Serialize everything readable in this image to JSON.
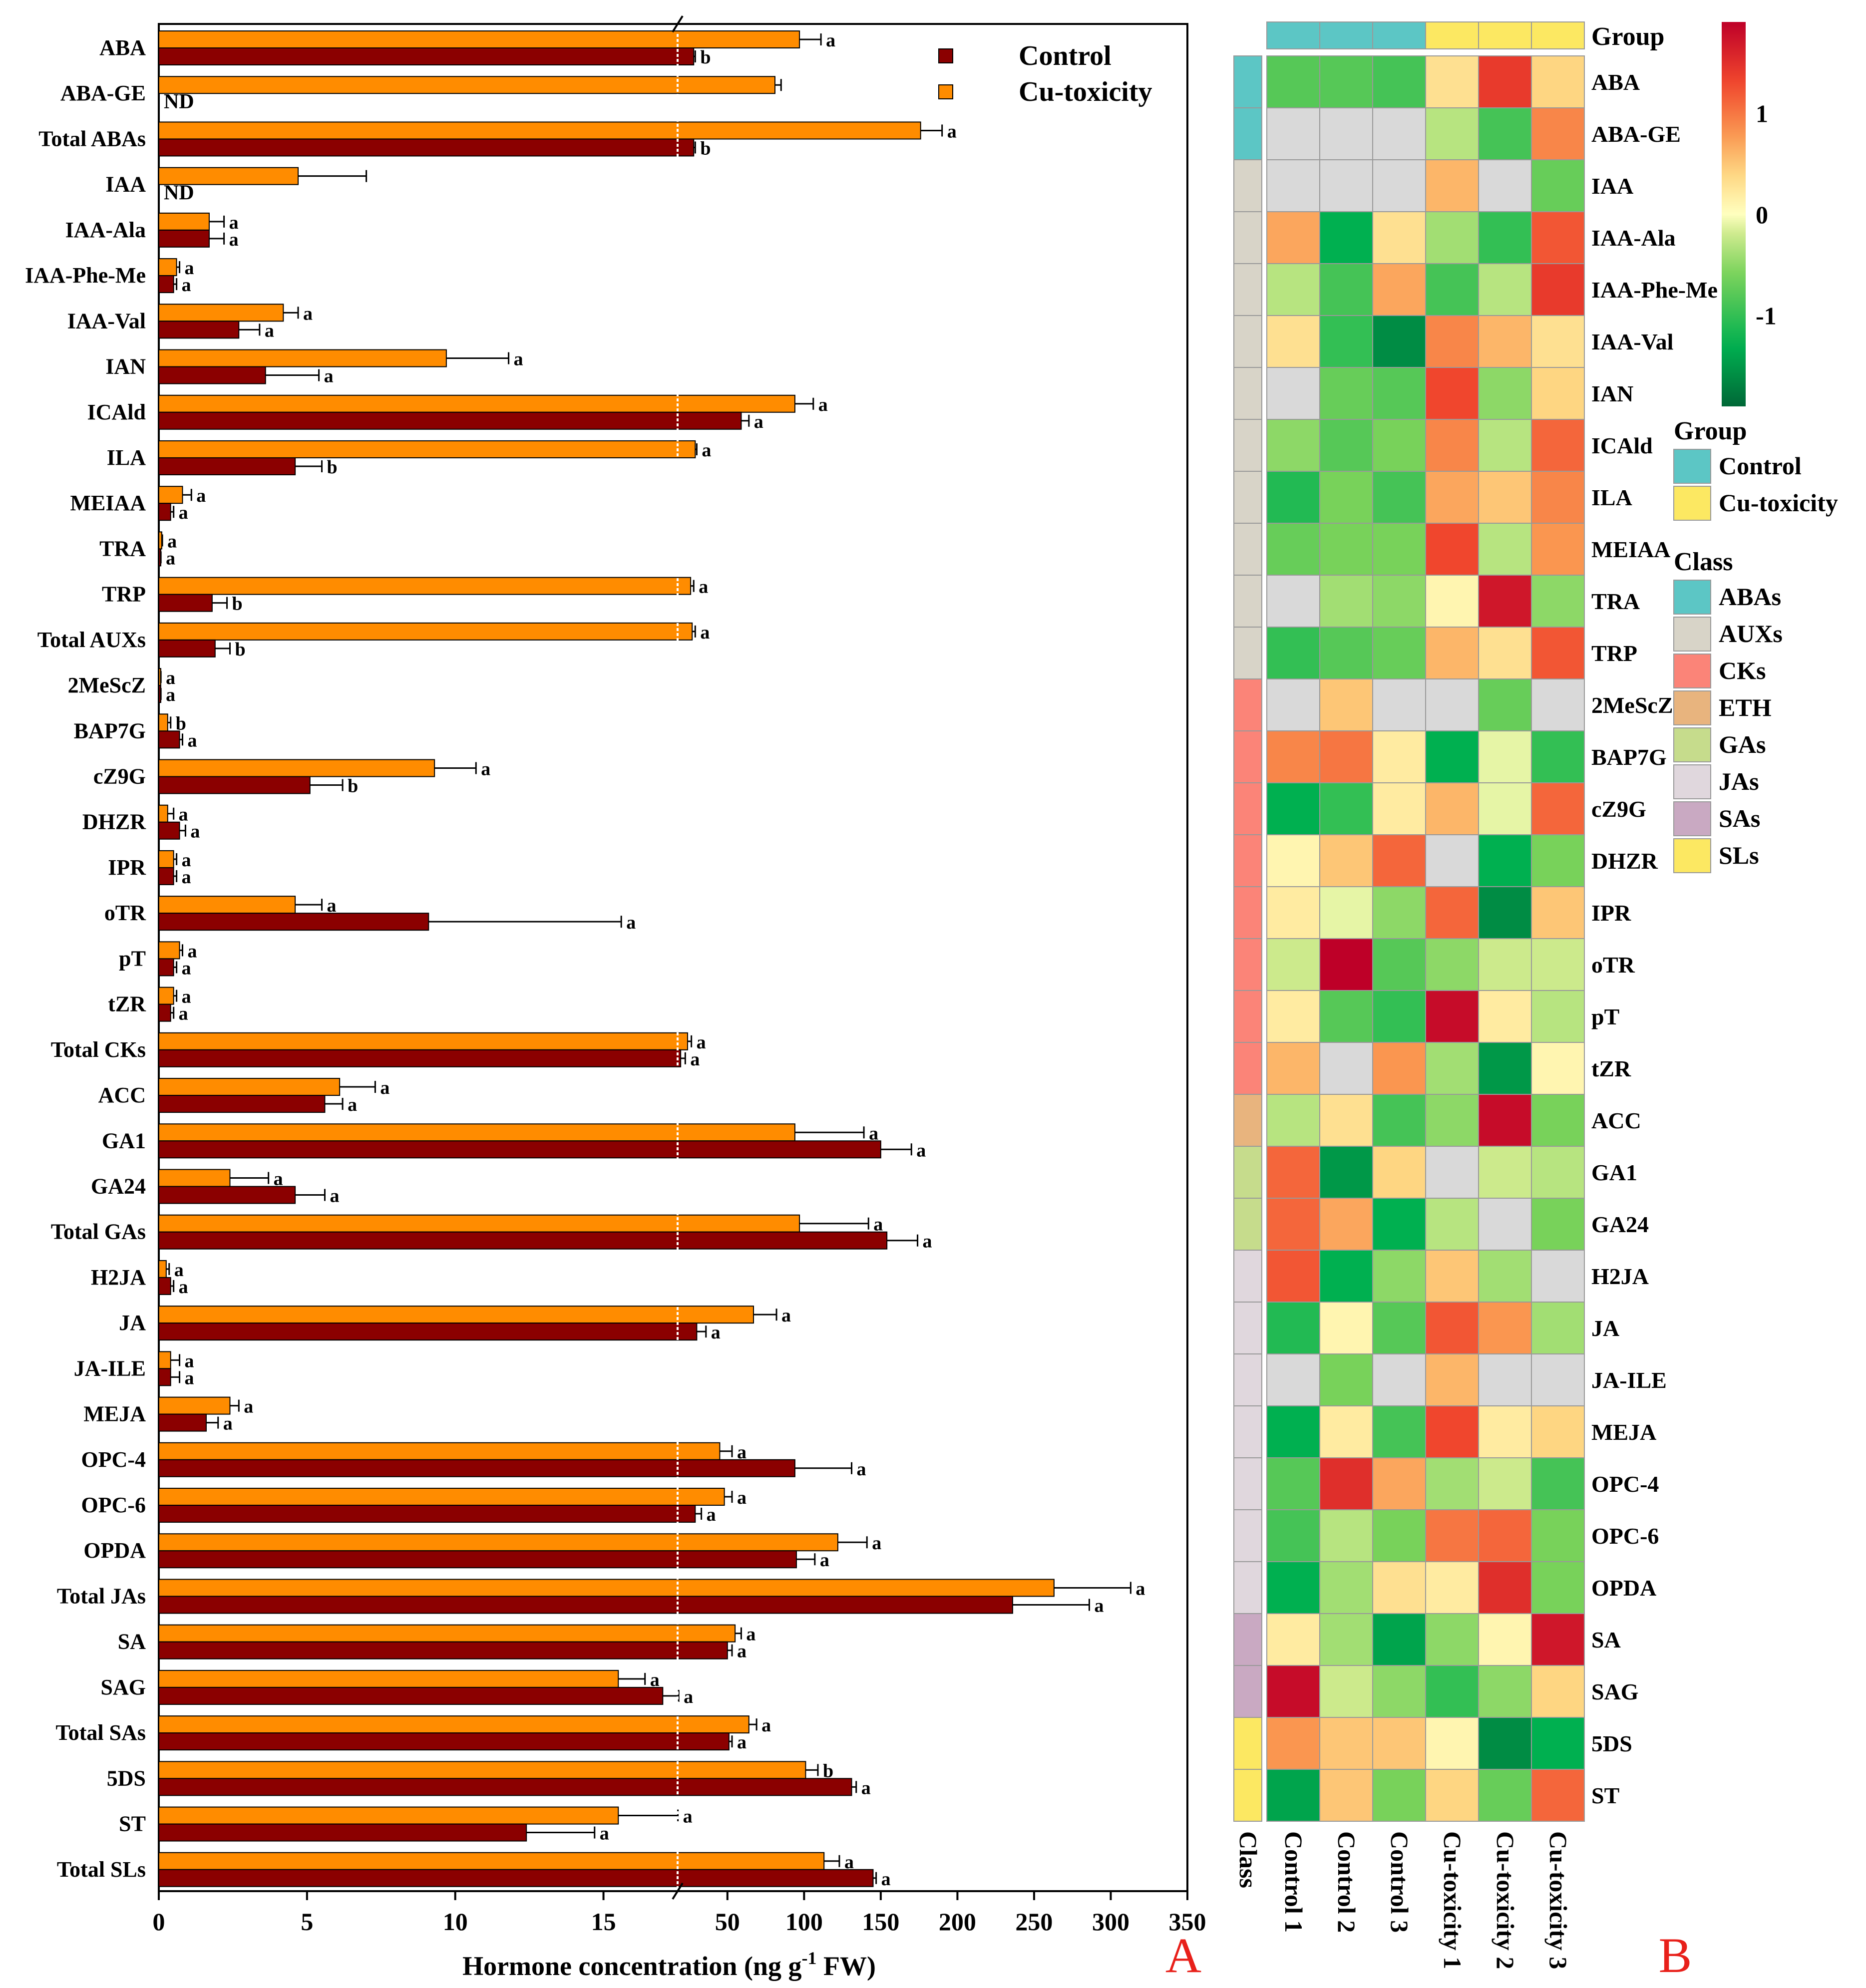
{
  "chart_data": [
    {
      "type": "bar",
      "panel_label": "A",
      "orientation": "horizontal",
      "categories": [
        "ABA",
        "ABA-GE",
        "Total ABAs",
        "IAA",
        "IAA-Ala",
        "IAA-Phe-Me",
        "IAA-Val",
        "IAN",
        "ICAld",
        "ILA",
        "MEIAA",
        "TRA",
        "TRP",
        "Total AUXs",
        "2MeScZ",
        "BAP7G",
        "cZ9G",
        "DHZR",
        "IPR",
        "oTR",
        "pT",
        "tZR",
        "Total CKs",
        "ACC",
        "GA1",
        "GA24",
        "Total GAs",
        "H2JA",
        "JA",
        "JA-ILE",
        "MEJA",
        "OPC-4",
        "OPC-6",
        "OPDA",
        "Total JAs",
        "SA",
        "SAG",
        "Total SAs",
        "5DS",
        "ST",
        "Total SLs"
      ],
      "series": [
        {
          "name": "Control",
          "color": "#8b0000",
          "values": [
            28,
            null,
            28,
            null,
            1.7,
            0.5,
            2.7,
            3.6,
            59,
            4.6,
            0.4,
            0.05,
            1.8,
            1.9,
            0.05,
            0.7,
            5.1,
            0.7,
            0.5,
            9.1,
            0.5,
            0.4,
            19.5,
            5.6,
            150,
            4.6,
            154,
            0.4,
            30,
            0.4,
            1.6,
            94,
            29,
            95,
            236,
            50,
            17,
            51,
            131,
            12.4,
            145
          ],
          "errors": [
            1,
            null,
            1,
            null,
            0.5,
            0.1,
            0.7,
            1.8,
            5,
            0.9,
            0.1,
            0.02,
            0.5,
            0.5,
            0.02,
            0.1,
            1.1,
            0.2,
            0.1,
            6.5,
            0.1,
            0.1,
            3,
            0.6,
            20,
            1,
            20,
            0.1,
            6,
            0.3,
            0.4,
            37,
            4,
            12,
            50,
            3,
            1.2,
            2,
            3,
            2.3,
            2
          ],
          "labels": [
            "b",
            "",
            "b",
            "",
            "a",
            "a",
            "a",
            "a",
            "a",
            "b",
            "a",
            "a",
            "b",
            "b",
            "a",
            "a",
            "b",
            "a",
            "a",
            "a",
            "a",
            "a",
            "a",
            "a",
            "a",
            "a",
            "a",
            "a",
            "a",
            "a",
            "a",
            "a",
            "a",
            "a",
            "a",
            "a",
            "a",
            "a",
            "a",
            "a",
            "a"
          ],
          "not_detected": [
            "",
            "ND",
            "",
            "ND",
            "",
            "",
            "",
            "",
            "",
            "",
            "",
            "",
            "",
            "",
            "",
            "",
            "",
            "",
            "",
            "",
            "",
            "",
            "",
            "",
            "",
            "",
            "",
            "",
            "",
            "",
            "",
            "",
            "",
            "",
            "",
            "",
            "",
            "",
            "",
            "",
            ""
          ]
        },
        {
          "name": "Cu-toxicity",
          "color": "#ff8c00",
          "values": [
            97,
            81,
            176,
            4.7,
            1.7,
            0.6,
            4.2,
            9.7,
            94,
            29,
            0.8,
            0.1,
            26,
            27,
            0.05,
            0.3,
            9.3,
            0.3,
            0.5,
            4.6,
            0.7,
            0.5,
            24,
            6.1,
            94,
            2.4,
            97,
            0.25,
            67,
            0.4,
            2.4,
            45,
            48,
            122,
            263,
            55,
            15.5,
            64,
            101,
            15.5,
            113
          ],
          "errors": [
            14,
            4,
            14,
            2.3,
            0.5,
            0.1,
            0.5,
            2.1,
            12,
            1,
            0.3,
            0.02,
            2,
            2,
            0.02,
            0.1,
            1.4,
            0.2,
            0.1,
            0.9,
            0.1,
            0.1,
            2.5,
            1.2,
            45,
            1.3,
            45,
            0.1,
            15,
            0.3,
            0.3,
            8,
            5,
            19,
            50,
            4,
            0.9,
            5,
            8,
            2.2,
            10
          ],
          "labels": [
            "a",
            "",
            "a",
            "",
            "a",
            "a",
            "a",
            "a",
            "a",
            "a",
            "a",
            "a",
            "a",
            "a",
            "a",
            "b",
            "a",
            "a",
            "a",
            "a",
            "a",
            "a",
            "a",
            "a",
            "a",
            "a",
            "a",
            "a",
            "a",
            "a",
            "a",
            "a",
            "a",
            "a",
            "a",
            "a",
            "a",
            "a",
            "b",
            "a",
            "a"
          ]
        }
      ],
      "x_axis": {
        "xlabel": "Hormone concentration (ng g",
        "xlabel_sup": "-1",
        "xlabel_tail": " FW)",
        "broken": true,
        "break_at": 17.5,
        "segment1_range": [
          0,
          17.5
        ],
        "segment1_ticks": [
          "0",
          "5",
          "10",
          "15"
        ],
        "segment2_range": [
          17.5,
          350
        ],
        "segment2_ticks": [
          "50",
          "100",
          "150",
          "200",
          "250",
          "300",
          "350"
        ]
      },
      "legend": {
        "placement": "top-right",
        "entries": [
          "Control",
          "Cu-toxicity"
        ]
      }
    },
    {
      "type": "heatmap",
      "panel_label": "B",
      "rows": [
        "ABA",
        "ABA-GE",
        "IAA",
        "IAA-Ala",
        "IAA-Phe-Me",
        "IAA-Val",
        "IAN",
        "ICAld",
        "ILA",
        "MEIAA",
        "TRA",
        "TRP",
        "2MeScZ",
        "BAP7G",
        "cZ9G",
        "DHZR",
        "IPR",
        "oTR",
        "pT",
        "tZR",
        "ACC",
        "GA1",
        "GA24",
        "H2JA",
        "JA",
        "JA-ILE",
        "MEJA",
        "OPC-4",
        "OPC-6",
        "OPDA",
        "SA",
        "SAG",
        "5DS",
        "ST"
      ],
      "columns": [
        "Control 1",
        "Control 2",
        "Control 3",
        "Cu-toxicity 1",
        "Cu-toxicity 2",
        "Cu-toxicity 3"
      ],
      "column_groups": [
        "Control",
        "Control",
        "Control",
        "Cu-toxicity",
        "Cu-toxicity",
        "Cu-toxicity"
      ],
      "group_header": "Group",
      "class_header": "Class",
      "row_classes": [
        "ABAs",
        "ABAs",
        "AUXs",
        "AUXs",
        "AUXs",
        "AUXs",
        "AUXs",
        "AUXs",
        "AUXs",
        "AUXs",
        "AUXs",
        "AUXs",
        "CKs",
        "CKs",
        "CKs",
        "CKs",
        "CKs",
        "CKs",
        "CKs",
        "CKs",
        "ETH",
        "GAs",
        "GAs",
        "JAs",
        "JAs",
        "JAs",
        "JAs",
        "JAs",
        "JAs",
        "JAs",
        "SAs",
        "SAs",
        "SLs",
        "SLs"
      ],
      "values": [
        [
          -0.8,
          -0.8,
          -0.9,
          0.3,
          1.4,
          0.4
        ],
        [
          null,
          null,
          null,
          -0.3,
          -0.9,
          0.9
        ],
        [
          null,
          null,
          null,
          0.6,
          null,
          -0.7
        ],
        [
          0.7,
          -1.3,
          0.3,
          -0.4,
          -1.0,
          1.2
        ],
        [
          -0.3,
          -0.9,
          0.7,
          -0.9,
          -0.3,
          1.4
        ],
        [
          0.3,
          -1.0,
          -1.6,
          0.9,
          0.6,
          0.3
        ],
        [
          null,
          -0.7,
          -0.8,
          1.3,
          -0.5,
          0.4
        ],
        [
          -0.5,
          -0.8,
          -0.6,
          0.9,
          -0.3,
          1.1
        ],
        [
          -1.1,
          -0.6,
          -0.9,
          0.7,
          0.5,
          0.9
        ],
        [
          -0.7,
          -0.6,
          -0.6,
          1.3,
          -0.3,
          0.8
        ],
        [
          null,
          -0.4,
          -0.5,
          0.1,
          1.7,
          -0.5
        ],
        [
          -1.0,
          -0.8,
          -0.7,
          0.6,
          0.3,
          1.2
        ],
        [
          null,
          0.5,
          null,
          null,
          -0.7,
          null
        ],
        [
          0.9,
          1.0,
          0.2,
          -1.3,
          -0.1,
          -1.0
        ],
        [
          -1.3,
          -1.0,
          0.2,
          0.6,
          -0.1,
          1.1
        ],
        [
          0.1,
          0.5,
          1.1,
          null,
          -1.3,
          -0.6
        ],
        [
          0.2,
          -0.1,
          -0.5,
          1.1,
          -1.6,
          0.5
        ],
        [
          -0.2,
          1.9,
          -0.8,
          -0.5,
          -0.2,
          -0.2
        ],
        [
          0.2,
          -0.8,
          -1.0,
          1.8,
          0.2,
          -0.3
        ],
        [
          0.6,
          null,
          0.8,
          -0.4,
          -1.5,
          0.1
        ],
        [
          -0.3,
          0.3,
          -0.9,
          -0.5,
          1.8,
          -0.6
        ],
        [
          1.1,
          -1.5,
          0.4,
          null,
          -0.2,
          -0.3
        ],
        [
          1.1,
          0.7,
          -1.3,
          -0.3,
          null,
          -0.6
        ],
        [
          1.2,
          -1.3,
          -0.5,
          0.5,
          -0.4,
          null
        ],
        [
          -1.1,
          0.1,
          -0.8,
          1.2,
          0.8,
          -0.4
        ],
        [
          null,
          -0.6,
          null,
          0.6,
          null,
          null
        ],
        [
          -1.3,
          0.2,
          -0.9,
          1.3,
          0.2,
          0.4
        ],
        [
          -0.8,
          1.5,
          0.7,
          -0.4,
          -0.2,
          -0.9
        ],
        [
          -0.9,
          -0.3,
          -0.6,
          1.0,
          1.1,
          -0.6
        ],
        [
          -1.3,
          -0.4,
          0.3,
          0.2,
          1.5,
          -0.6
        ],
        [
          0.2,
          -0.4,
          -1.4,
          -0.5,
          0.1,
          1.7
        ],
        [
          1.8,
          -0.2,
          -0.5,
          -1.0,
          -0.5,
          0.4
        ],
        [
          0.8,
          0.5,
          0.5,
          0.1,
          -1.6,
          -1.3
        ],
        [
          -1.4,
          0.5,
          -0.6,
          0.4,
          -0.7,
          1.1
        ]
      ],
      "missing_color": "#d9d9d9",
      "colorbar": {
        "ticks": [
          "1",
          "0",
          "-1"
        ],
        "tick_values": [
          1,
          0,
          -1
        ],
        "range": [
          -1.9,
          1.9
        ]
      },
      "group_colors": {
        "Control": "#5cc6c5",
        "Cu-toxicity": "#fce862"
      },
      "class_colors": {
        "ABAs": "#5cc6c5",
        "AUXs": "#d8d4c8",
        "CKs": "#fb8478",
        "ETH": "#e8b47e",
        "GAs": "#c6dc8c",
        "JAs": "#e0d7dd",
        "SAs": "#c9a9c2",
        "SLs": "#fce862"
      },
      "legend": {
        "group_title": "Group",
        "group_entries": [
          "Control",
          "Cu-toxicity"
        ],
        "class_title": "Class",
        "class_entries": [
          "ABAs",
          "AUXs",
          "CKs",
          "ETH",
          "GAs",
          "JAs",
          "SAs",
          "SLs"
        ]
      }
    }
  ]
}
